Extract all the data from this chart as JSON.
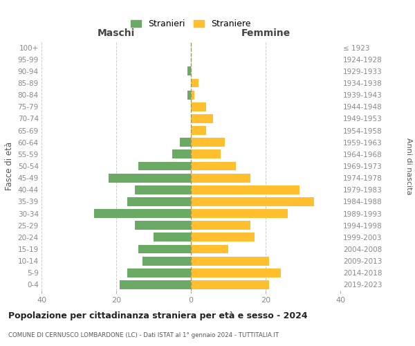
{
  "age_groups": [
    "0-4",
    "5-9",
    "10-14",
    "15-19",
    "20-24",
    "25-29",
    "30-34",
    "35-39",
    "40-44",
    "45-49",
    "50-54",
    "55-59",
    "60-64",
    "65-69",
    "70-74",
    "75-79",
    "80-84",
    "85-89",
    "90-94",
    "95-99",
    "100+"
  ],
  "birth_years": [
    "2019-2023",
    "2014-2018",
    "2009-2013",
    "2004-2008",
    "1999-2003",
    "1994-1998",
    "1989-1993",
    "1984-1988",
    "1979-1983",
    "1974-1978",
    "1969-1973",
    "1964-1968",
    "1959-1963",
    "1954-1958",
    "1949-1953",
    "1944-1948",
    "1939-1943",
    "1934-1938",
    "1929-1933",
    "1924-1928",
    "≤ 1923"
  ],
  "maschi": [
    19,
    17,
    13,
    14,
    10,
    15,
    26,
    17,
    15,
    22,
    14,
    5,
    3,
    0,
    0,
    0,
    1,
    0,
    1,
    0,
    0
  ],
  "femmine": [
    21,
    24,
    21,
    10,
    17,
    16,
    26,
    33,
    29,
    16,
    12,
    8,
    9,
    4,
    6,
    4,
    1,
    2,
    0,
    0,
    0
  ],
  "color_maschi": "#6aaa64",
  "color_femmine": "#ffbf2e",
  "title": "Popolazione per cittadinanza straniera per età e sesso - 2024",
  "subtitle": "COMUNE DI CERNUSCO LOMBARDONE (LC) - Dati ISTAT al 1° gennaio 2024 - TUTTITALIA.IT",
  "xlabel_left": "Maschi",
  "xlabel_right": "Femmine",
  "ylabel_left": "Fasce di età",
  "ylabel_right": "Anni di nascita",
  "legend_maschi": "Stranieri",
  "legend_femmine": "Straniere",
  "xlim": 40,
  "background_color": "#ffffff",
  "grid_color": "#cccccc"
}
